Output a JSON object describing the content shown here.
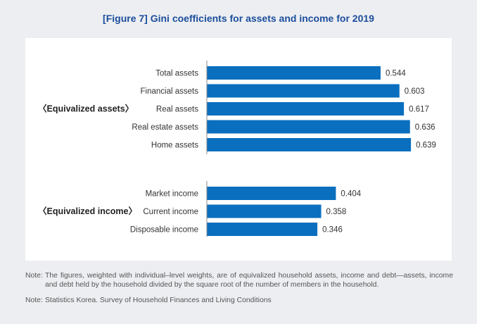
{
  "figure": {
    "title": "[Figure 7] Gini coefficients for assets and income for 2019"
  },
  "chart_data": {
    "type": "bar",
    "orientation": "horizontal",
    "title": "[Figure 7] Gini coefficients for assets and income for 2019",
    "bar_color": "#0a6fbe",
    "groups": [
      {
        "name": "〈Equivalized assets〉",
        "categories": [
          "Total assets",
          "Financial assets",
          "Real assets",
          "Real estate assets",
          "Home assets"
        ],
        "values": [
          0.544,
          0.603,
          0.617,
          0.636,
          0.639
        ],
        "value_labels": [
          "0.544",
          "0.603",
          "0.617",
          "0.636",
          "0.639"
        ]
      },
      {
        "name": "〈Equivalized income〉",
        "categories": [
          "Market income",
          "Current income",
          "Disposable income"
        ],
        "values": [
          0.404,
          0.358,
          0.346
        ],
        "value_labels": [
          "0.404",
          "0.358",
          "0.346"
        ]
      }
    ],
    "xlim": [
      0,
      0.65
    ],
    "grid": false,
    "legend": "none"
  },
  "notes": [
    {
      "label": "Note:",
      "text": "The figures, weighted with individual–level weights, are of equivalized household assets, income and debt—assets, income and debt held by the household divided by the square root of the number of members in the household."
    },
    {
      "label": "Note:",
      "text": "Statistics Korea. Survey of Household Finances and Living Conditions"
    }
  ]
}
